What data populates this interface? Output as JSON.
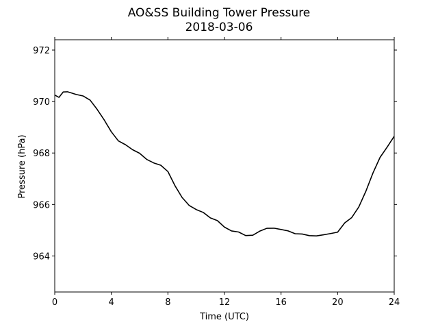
{
  "chart_data": {
    "type": "line",
    "title": "AO&SS Building Tower Pressure",
    "subtitle": "2018-03-06",
    "xlabel": "Time (UTC)",
    "ylabel": "Pressure (hPa)",
    "xlim": [
      0,
      24
    ],
    "ylim": [
      962.6,
      972.4
    ],
    "xticks": [
      0,
      4,
      8,
      12,
      16,
      20,
      24
    ],
    "yticks": [
      964,
      966,
      968,
      970,
      972
    ],
    "grid": false,
    "series": [
      {
        "color": "#000000",
        "x": [
          0,
          0.3,
          0.6,
          0.9,
          1.2,
          1.5,
          2.0,
          2.5,
          3.0,
          3.5,
          4.0,
          4.5,
          5.0,
          5.5,
          6.0,
          6.5,
          7.0,
          7.5,
          8.0,
          8.5,
          9.0,
          9.5,
          10.0,
          10.5,
          11.0,
          11.5,
          12.0,
          12.5,
          13.0,
          13.5,
          14.0,
          14.5,
          15.0,
          15.5,
          16.0,
          16.5,
          17.0,
          17.5,
          18.0,
          18.5,
          19.0,
          19.5,
          20.0,
          20.5,
          21.0,
          21.5,
          22.0,
          22.5,
          23.0,
          23.5,
          24.0
        ],
        "y": [
          970.25,
          970.15,
          970.35,
          970.35,
          970.3,
          970.25,
          970.2,
          970.05,
          969.7,
          969.3,
          968.85,
          968.5,
          968.35,
          968.15,
          968.0,
          967.75,
          967.6,
          967.5,
          967.25,
          966.7,
          966.25,
          965.95,
          965.8,
          965.7,
          965.5,
          965.4,
          965.15,
          965.0,
          964.95,
          964.8,
          964.8,
          964.95,
          965.05,
          965.05,
          965.0,
          964.95,
          964.85,
          964.85,
          964.8,
          964.8,
          964.85,
          964.9,
          964.95,
          965.3,
          965.5,
          965.9,
          966.5,
          967.2,
          967.8,
          968.2,
          968.65
        ]
      }
    ]
  }
}
